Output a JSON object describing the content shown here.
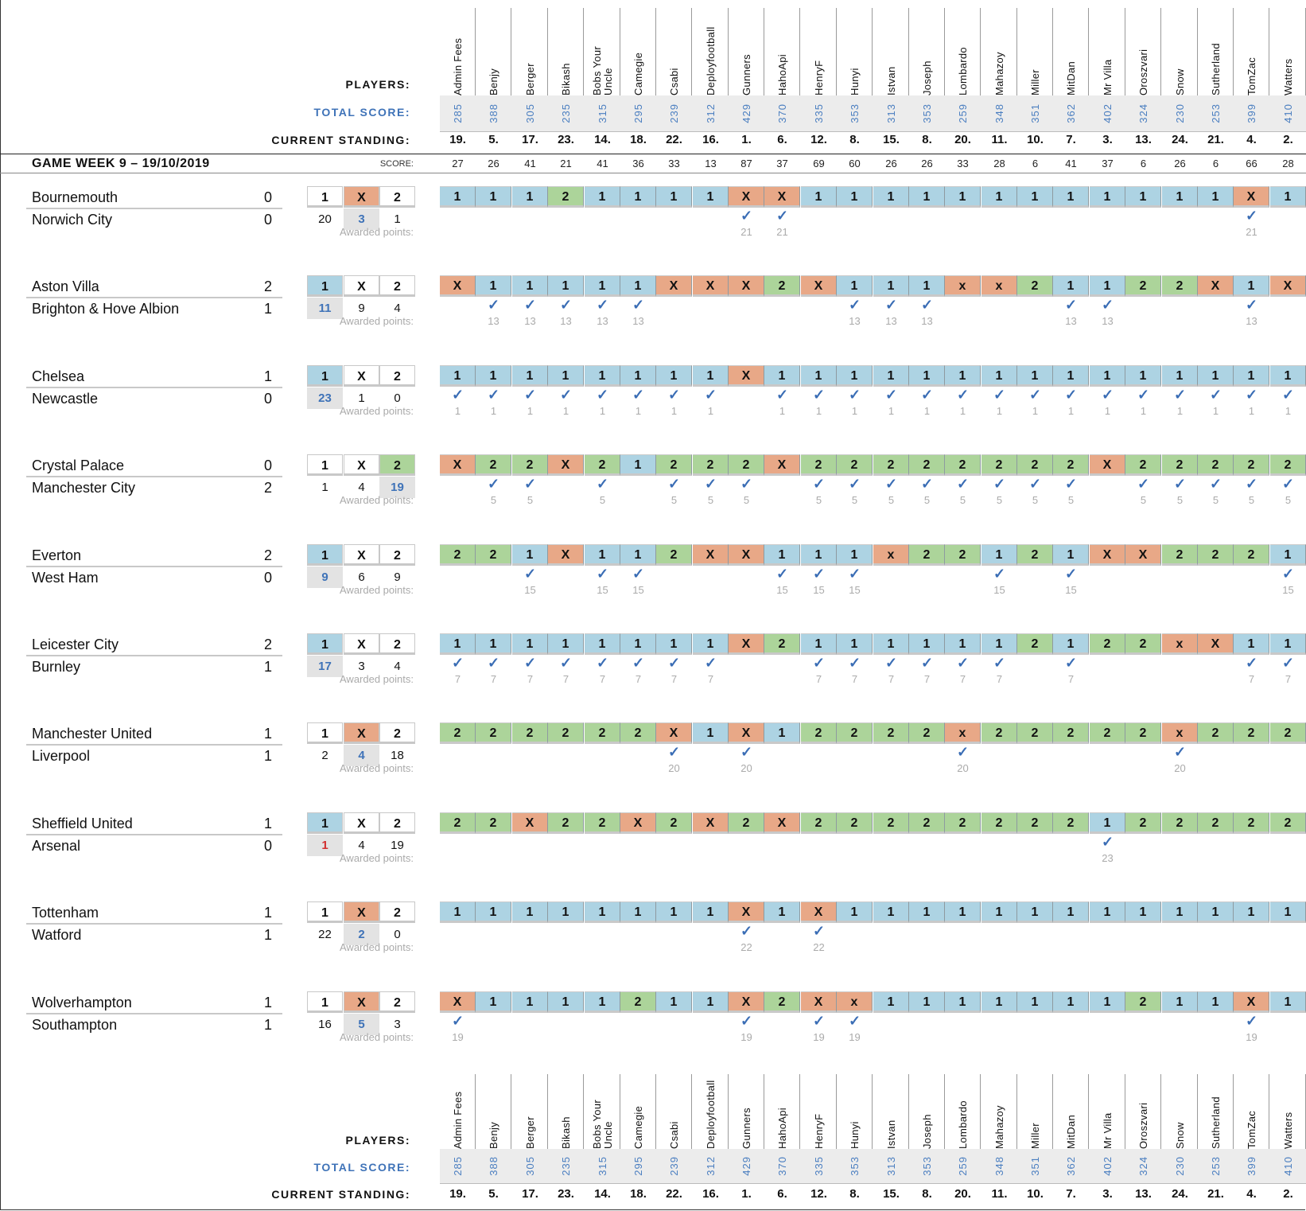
{
  "labels": {
    "players": "PLAYERS:",
    "total_score": "TOTAL SCORE:",
    "current_standing": "CURRENT STANDING:",
    "game_week": "GAME WEEK 9 – 19/10/2019",
    "score": "SCORE:",
    "awarded_points": "Awarded points:",
    "outcomes": [
      "1",
      "X",
      "2"
    ],
    "check": "✓"
  },
  "colors": {
    "pick_1": "#add3e3",
    "pick_X": "#e8a887",
    "pick_2": "#acd49a",
    "accent": "#3f73b8"
  },
  "players": [
    {
      "name": "Admin Fees",
      "total": "285",
      "standing": "19.",
      "score": "27"
    },
    {
      "name": "Benjy",
      "total": "388",
      "standing": "5.",
      "score": "26"
    },
    {
      "name": "Berger",
      "total": "305",
      "standing": "17.",
      "score": "41"
    },
    {
      "name": "Bikash",
      "total": "235",
      "standing": "23.",
      "score": "21"
    },
    {
      "name": "Bobs Your Uncle",
      "total": "315",
      "standing": "14.",
      "score": "41"
    },
    {
      "name": "Camegie",
      "total": "295",
      "standing": "18.",
      "score": "36"
    },
    {
      "name": "Csabi",
      "total": "239",
      "standing": "22.",
      "score": "33"
    },
    {
      "name": "Deployfootball",
      "total": "312",
      "standing": "16.",
      "score": "13"
    },
    {
      "name": "Gunners",
      "total": "429",
      "standing": "1.",
      "score": "87"
    },
    {
      "name": "HahoApi",
      "total": "370",
      "standing": "6.",
      "score": "37"
    },
    {
      "name": "HenryF",
      "total": "335",
      "standing": "12.",
      "score": "69"
    },
    {
      "name": "Hunyi",
      "total": "353",
      "standing": "8.",
      "score": "60"
    },
    {
      "name": "Istvan",
      "total": "313",
      "standing": "15.",
      "score": "26"
    },
    {
      "name": "Joseph",
      "total": "353",
      "standing": "8.",
      "score": "26"
    },
    {
      "name": "Lombardo",
      "total": "259",
      "standing": "20.",
      "score": "33"
    },
    {
      "name": "Mahazoy",
      "total": "348",
      "standing": "11.",
      "score": "28"
    },
    {
      "name": "Miller",
      "total": "351",
      "standing": "10.",
      "score": "6"
    },
    {
      "name": "MitDan",
      "total": "362",
      "standing": "7.",
      "score": "41"
    },
    {
      "name": "Mr Villa",
      "total": "402",
      "standing": "3.",
      "score": "37"
    },
    {
      "name": "Oroszvari",
      "total": "324",
      "standing": "13.",
      "score": "6"
    },
    {
      "name": "Snow",
      "total": "230",
      "standing": "24.",
      "score": "26"
    },
    {
      "name": "Sutherland",
      "total": "253",
      "standing": "21.",
      "score": "6"
    },
    {
      "name": "TomZac",
      "total": "399",
      "standing": "4.",
      "score": "66"
    },
    {
      "name": "Watters",
      "total": "410",
      "standing": "2.",
      "score": "28"
    }
  ],
  "matches": [
    {
      "home": "Bournemouth",
      "away": "Norwich City",
      "home_score": "0",
      "away_score": "0",
      "result": "X",
      "counts": [
        "20",
        "3",
        "1"
      ],
      "points": "21",
      "picks": [
        "1",
        "1",
        "1",
        "2",
        "1",
        "1",
        "1",
        "1",
        "X",
        "X",
        "1",
        "1",
        "1",
        "1",
        "1",
        "1",
        "1",
        "1",
        "1",
        "1",
        "1",
        "1",
        "X",
        "1"
      ]
    },
    {
      "home": "Aston Villa",
      "away": "Brighton & Hove Albion",
      "home_score": "2",
      "away_score": "1",
      "result": "1",
      "counts": [
        "11",
        "9",
        "4"
      ],
      "points": "13",
      "picks": [
        "X",
        "1",
        "1",
        "1",
        "1",
        "1",
        "X",
        "X",
        "X",
        "2",
        "X",
        "1",
        "1",
        "1",
        "x",
        "x",
        "2",
        "1",
        "1",
        "2",
        "2",
        "X",
        "1",
        "X"
      ]
    },
    {
      "home": "Chelsea",
      "away": "Newcastle",
      "home_score": "1",
      "away_score": "0",
      "result": "1",
      "counts": [
        "23",
        "1",
        "0"
      ],
      "points": "1",
      "picks": [
        "1",
        "1",
        "1",
        "1",
        "1",
        "1",
        "1",
        "1",
        "X",
        "1",
        "1",
        "1",
        "1",
        "1",
        "1",
        "1",
        "1",
        "1",
        "1",
        "1",
        "1",
        "1",
        "1",
        "1"
      ]
    },
    {
      "home": "Crystal Palace",
      "away": "Manchester City",
      "home_score": "0",
      "away_score": "2",
      "result": "2",
      "counts": [
        "1",
        "4",
        "19"
      ],
      "points": "5",
      "picks": [
        "X",
        "2",
        "2",
        "X",
        "2",
        "1",
        "2",
        "2",
        "2",
        "X",
        "2",
        "2",
        "2",
        "2",
        "2",
        "2",
        "2",
        "2",
        "X",
        "2",
        "2",
        "2",
        "2",
        "2"
      ]
    },
    {
      "home": "Everton",
      "away": "West Ham",
      "home_score": "2",
      "away_score": "0",
      "result": "1",
      "counts": [
        "9",
        "6",
        "9"
      ],
      "points": "15",
      "picks": [
        "2",
        "2",
        "1",
        "X",
        "1",
        "1",
        "2",
        "X",
        "X",
        "1",
        "1",
        "1",
        "x",
        "2",
        "2",
        "1",
        "2",
        "1",
        "X",
        "X",
        "2",
        "2",
        "2",
        "1"
      ]
    },
    {
      "home": "Leicester City",
      "away": "Burnley",
      "home_score": "2",
      "away_score": "1",
      "result": "1",
      "counts": [
        "17",
        "3",
        "4"
      ],
      "points": "7",
      "picks": [
        "1",
        "1",
        "1",
        "1",
        "1",
        "1",
        "1",
        "1",
        "X",
        "2",
        "1",
        "1",
        "1",
        "1",
        "1",
        "1",
        "2",
        "1",
        "2",
        "2",
        "x",
        "X",
        "1",
        "1"
      ]
    },
    {
      "home": "Manchester United",
      "away": "Liverpool",
      "home_score": "1",
      "away_score": "1",
      "result": "X",
      "counts": [
        "2",
        "4",
        "18"
      ],
      "points": "20",
      "picks": [
        "2",
        "2",
        "2",
        "2",
        "2",
        "2",
        "X",
        "1",
        "X",
        "1",
        "2",
        "2",
        "2",
        "2",
        "x",
        "2",
        "2",
        "2",
        "2",
        "2",
        "x",
        "2",
        "2",
        "2"
      ]
    },
    {
      "home": "Sheffield United",
      "away": "Arsenal",
      "home_score": "1",
      "away_score": "0",
      "result": "1",
      "counts": [
        "1",
        "4",
        "19"
      ],
      "points": "23",
      "low_count": true,
      "picks": [
        "2",
        "2",
        "X",
        "2",
        "2",
        "X",
        "2",
        "X",
        "2",
        "X",
        "2",
        "2",
        "2",
        "2",
        "2",
        "2",
        "2",
        "2",
        "1",
        "2",
        "2",
        "2",
        "2",
        "2"
      ]
    },
    {
      "home": "Tottenham",
      "away": "Watford",
      "home_score": "1",
      "away_score": "1",
      "result": "X",
      "counts": [
        "22",
        "2",
        "0"
      ],
      "points": "22",
      "picks": [
        "1",
        "1",
        "1",
        "1",
        "1",
        "1",
        "1",
        "1",
        "X",
        "1",
        "X",
        "1",
        "1",
        "1",
        "1",
        "1",
        "1",
        "1",
        "1",
        "1",
        "1",
        "1",
        "1",
        "1"
      ]
    },
    {
      "home": "Wolverhampton",
      "away": "Southampton",
      "home_score": "1",
      "away_score": "1",
      "result": "X",
      "counts": [
        "16",
        "5",
        "3"
      ],
      "points": "19",
      "picks": [
        "X",
        "1",
        "1",
        "1",
        "1",
        "2",
        "1",
        "1",
        "X",
        "2",
        "X",
        "x",
        "1",
        "1",
        "1",
        "1",
        "1",
        "1",
        "1",
        "2",
        "1",
        "1",
        "X",
        "1"
      ]
    }
  ]
}
